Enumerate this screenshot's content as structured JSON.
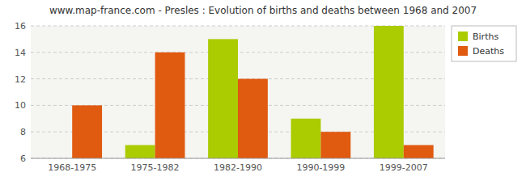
{
  "chart_data": {
    "type": "bar",
    "title": "www.map-france.com - Presles : Evolution of births and deaths between 1968 and 2007",
    "categories": [
      "1968-1975",
      "1975-1982",
      "1982-1990",
      "1990-1999",
      "1999-2007"
    ],
    "series": [
      {
        "name": "Births",
        "color": "#aacc00",
        "values": [
          6,
          7,
          15,
          9,
          16
        ]
      },
      {
        "name": "Deaths",
        "color": "#e05a10",
        "values": [
          10,
          14,
          12,
          8,
          7
        ]
      }
    ],
    "ylim": [
      6,
      16
    ],
    "yticks": [
      6,
      8,
      10,
      12,
      14,
      16
    ],
    "grid": true,
    "legend": "upper right"
  }
}
